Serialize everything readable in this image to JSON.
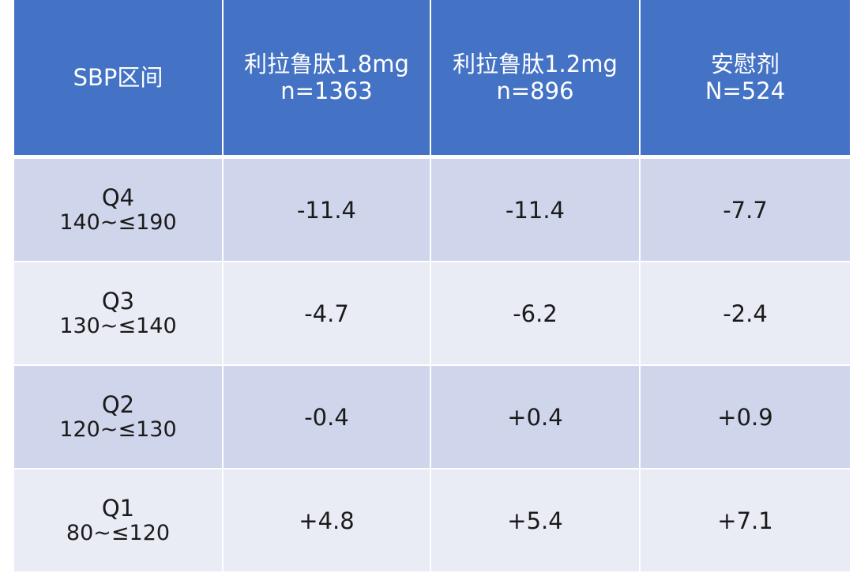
{
  "table": {
    "headers": [
      {
        "line1": "SBP区间",
        "line2": ""
      },
      {
        "line1": "利拉鲁肽1.8mg",
        "line2": "n=1363"
      },
      {
        "line1": "利拉鲁肽1.2mg",
        "line2": "n=896"
      },
      {
        "line1": "安慰剂",
        "line2": "N=524"
      }
    ],
    "rows": [
      {
        "quartile": "Q4",
        "range": "140~≤190",
        "lira18": "-11.4",
        "lira12": "-11.4",
        "placebo": "-7.7"
      },
      {
        "quartile": "Q3",
        "range": "130~≤140",
        "lira18": "-4.7",
        "lira12": "-6.2",
        "placebo": "-2.4"
      },
      {
        "quartile": "Q2",
        "range": "120~≤130",
        "lira18": "-0.4",
        "lira12": "+0.4",
        "placebo": "+0.9"
      },
      {
        "quartile": "Q1",
        "range": "80~≤120",
        "lira18": "+4.8",
        "lira12": "+5.4",
        "placebo": "+7.1"
      }
    ],
    "colors": {
      "header_bg": "#4472c4",
      "row_dark_bg": "#cfd5ea",
      "row_light_bg": "#e9ebf5"
    }
  }
}
